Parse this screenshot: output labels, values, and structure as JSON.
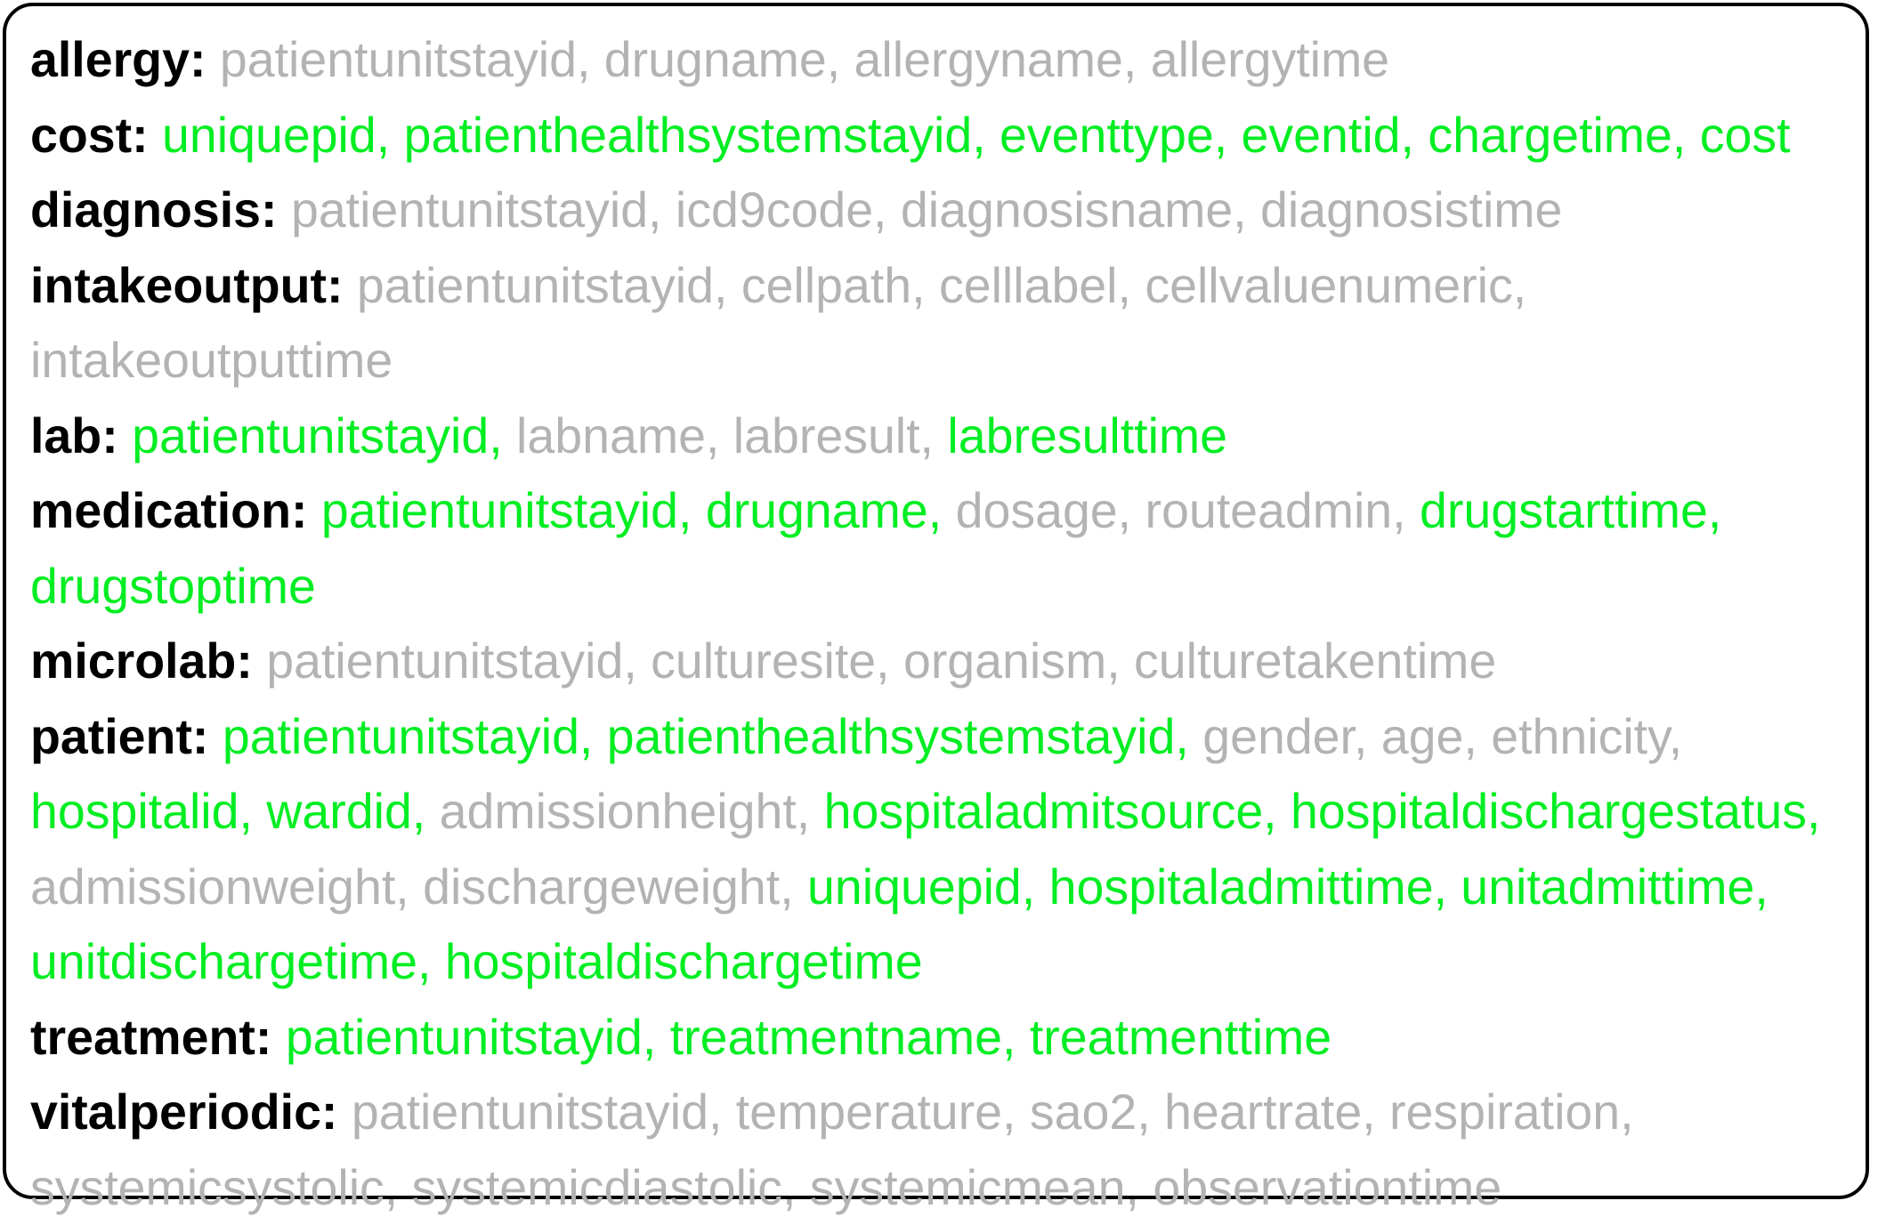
{
  "colors": {
    "used_column": "#00ee22",
    "unused_column": "#b3b3b3",
    "table_name": "#000000",
    "border": "#000000"
  },
  "tables": [
    {
      "label": "allergy:",
      "lines": [
        [
          {
            "text": "patientunitstayid, drugname, allergyname, allergytime",
            "used": false
          }
        ]
      ]
    },
    {
      "label": "cost:",
      "lines": [
        [
          {
            "text": "uniquepid, patienthealthsystemstayid, eventtype, eventid, chargetime, cost",
            "used": true
          }
        ]
      ]
    },
    {
      "label": "diagnosis:",
      "lines": [
        [
          {
            "text": "patientunitstayid, icd9code, diagnosisname, diagnosistime",
            "used": false
          }
        ]
      ]
    },
    {
      "label": "intakeoutput:",
      "lines": [
        [
          {
            "text": "patientunitstayid, cellpath, celllabel, cellvaluenumeric,",
            "used": false
          }
        ],
        [
          {
            "text": "intakeoutputtime",
            "used": false
          }
        ]
      ]
    },
    {
      "label": "lab:",
      "lines": [
        [
          {
            "text": "patientunitstayid,",
            "used": true
          },
          {
            "text": "labname, labresult,",
            "used": false
          },
          {
            "text": "labresulttime",
            "used": true
          }
        ]
      ]
    },
    {
      "label": "medication:",
      "lines": [
        [
          {
            "text": "patientunitstayid, drugname,",
            "used": true
          },
          {
            "text": "dosage, routeadmin,",
            "used": false
          },
          {
            "text": "drugstarttime,",
            "used": true
          }
        ],
        [
          {
            "text": "drugstoptime",
            "used": true
          }
        ]
      ]
    },
    {
      "label": "microlab:",
      "lines": [
        [
          {
            "text": "patientunitstayid, culturesite, organism, culturetakentime",
            "used": false
          }
        ]
      ]
    },
    {
      "label": "patient:",
      "lines": [
        [
          {
            "text": "patientunitstayid, patienthealthsystemstayid,",
            "used": true
          },
          {
            "text": "gender, age, ethnicity,",
            "used": false
          }
        ],
        [
          {
            "text": "hospitalid, wardid,",
            "used": true
          },
          {
            "text": "admissionheight,",
            "used": false
          },
          {
            "text": "hospitaladmitsource, hospitaldischargestatus,",
            "used": true
          }
        ],
        [
          {
            "text": "admissionweight, dischargeweight,",
            "used": false
          },
          {
            "text": "uniquepid, hospitaladmittime, unitadmittime,",
            "used": true
          }
        ],
        [
          {
            "text": "unitdischargetime, hospitaldischargetime",
            "used": true
          }
        ]
      ]
    },
    {
      "label": "treatment:",
      "lines": [
        [
          {
            "text": "patientunitstayid, treatmentname, treatmenttime",
            "used": true
          }
        ]
      ]
    },
    {
      "label": "vitalperiodic:",
      "lines": [
        [
          {
            "text": "patientunitstayid, temperature, sao2, heartrate, respiration,",
            "used": false
          }
        ],
        [
          {
            "text": "systemicsystolic, systemicdiastolic, systemicmean, observationtime",
            "used": false
          }
        ]
      ]
    }
  ]
}
